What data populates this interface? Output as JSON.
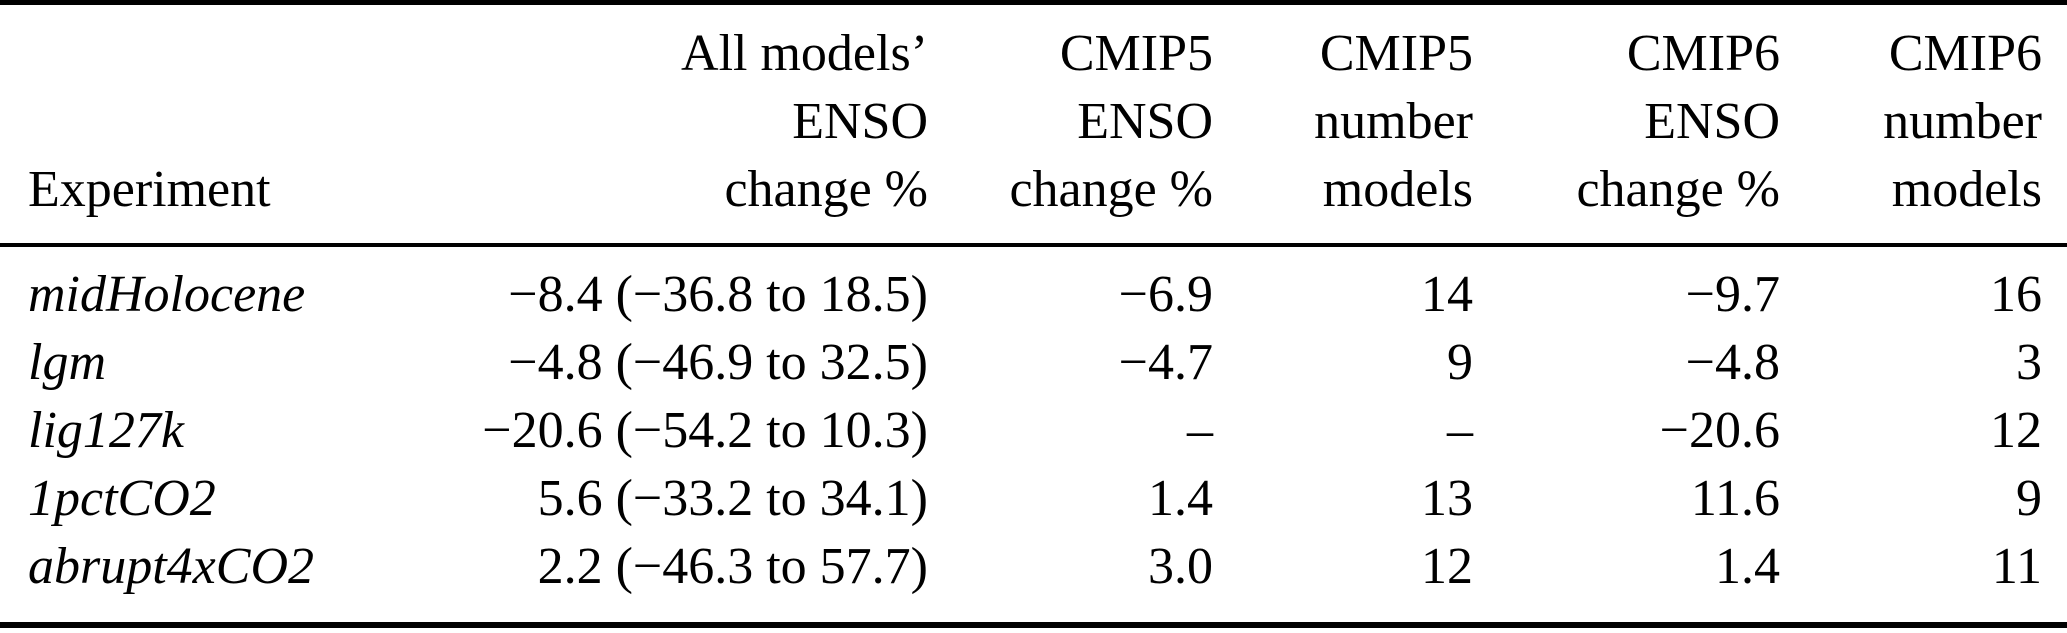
{
  "colors": {
    "background": "#ffffff",
    "text": "#000000",
    "rule": "#000000"
  },
  "table": {
    "columns": [
      {
        "header_lines": [
          "Experiment"
        ]
      },
      {
        "header_lines": [
          "All models’",
          "ENSO",
          "change %"
        ]
      },
      {
        "header_lines": [
          "CMIP5",
          "ENSO",
          "change %"
        ]
      },
      {
        "header_lines": [
          "CMIP5",
          "number",
          "models"
        ]
      },
      {
        "header_lines": [
          "CMIP6",
          "ENSO",
          "change %"
        ]
      },
      {
        "header_lines": [
          "CMIP6",
          "number",
          "models"
        ]
      }
    ],
    "rows": [
      {
        "experiment": "midHolocene",
        "all_models_enso_change": "−8.4 (−36.8 to 18.5)",
        "cmip5_enso_change": "−6.9",
        "cmip5_number_models": "14",
        "cmip6_enso_change": "−9.7",
        "cmip6_number_models": "16"
      },
      {
        "experiment": "lgm",
        "all_models_enso_change": "−4.8 (−46.9 to 32.5)",
        "cmip5_enso_change": "−4.7",
        "cmip5_number_models": "9",
        "cmip6_enso_change": "−4.8",
        "cmip6_number_models": "3"
      },
      {
        "experiment": "lig127k",
        "all_models_enso_change": "−20.6 (−54.2 to 10.3)",
        "cmip5_enso_change": "–",
        "cmip5_number_models": "–",
        "cmip6_enso_change": "−20.6",
        "cmip6_number_models": "12"
      },
      {
        "experiment": "1pctCO2",
        "all_models_enso_change": "5.6 (−33.2 to 34.1)",
        "cmip5_enso_change": "1.4",
        "cmip5_number_models": "13",
        "cmip6_enso_change": "11.6",
        "cmip6_number_models": "9"
      },
      {
        "experiment": "abrupt4xCO2",
        "all_models_enso_change": "2.2 (−46.3 to 57.7)",
        "cmip5_enso_change": "3.0",
        "cmip5_number_models": "12",
        "cmip6_enso_change": "1.4",
        "cmip6_number_models": "11"
      }
    ]
  },
  "chart_data": {
    "type": "table",
    "columns": [
      "Experiment",
      "All models’ ENSO change %",
      "CMIP5 ENSO change %",
      "CMIP5 number models",
      "CMIP6 ENSO change %",
      "CMIP6 number models"
    ],
    "rows": [
      [
        "midHolocene",
        "−8.4 (−36.8 to 18.5)",
        "−6.9",
        "14",
        "−9.7",
        "16"
      ],
      [
        "lgm",
        "−4.8 (−46.9 to 32.5)",
        "−4.7",
        "9",
        "−4.8",
        "3"
      ],
      [
        "lig127k",
        "−20.6 (−54.2 to 10.3)",
        "–",
        "–",
        "−20.6",
        "12"
      ],
      [
        "1pctCO2",
        "5.6 (−33.2 to 34.1)",
        "1.4",
        "13",
        "11.6",
        "9"
      ],
      [
        "abrupt4xCO2",
        "2.2 (−46.3 to 57.7)",
        "3.0",
        "12",
        "1.4",
        "11"
      ]
    ]
  }
}
